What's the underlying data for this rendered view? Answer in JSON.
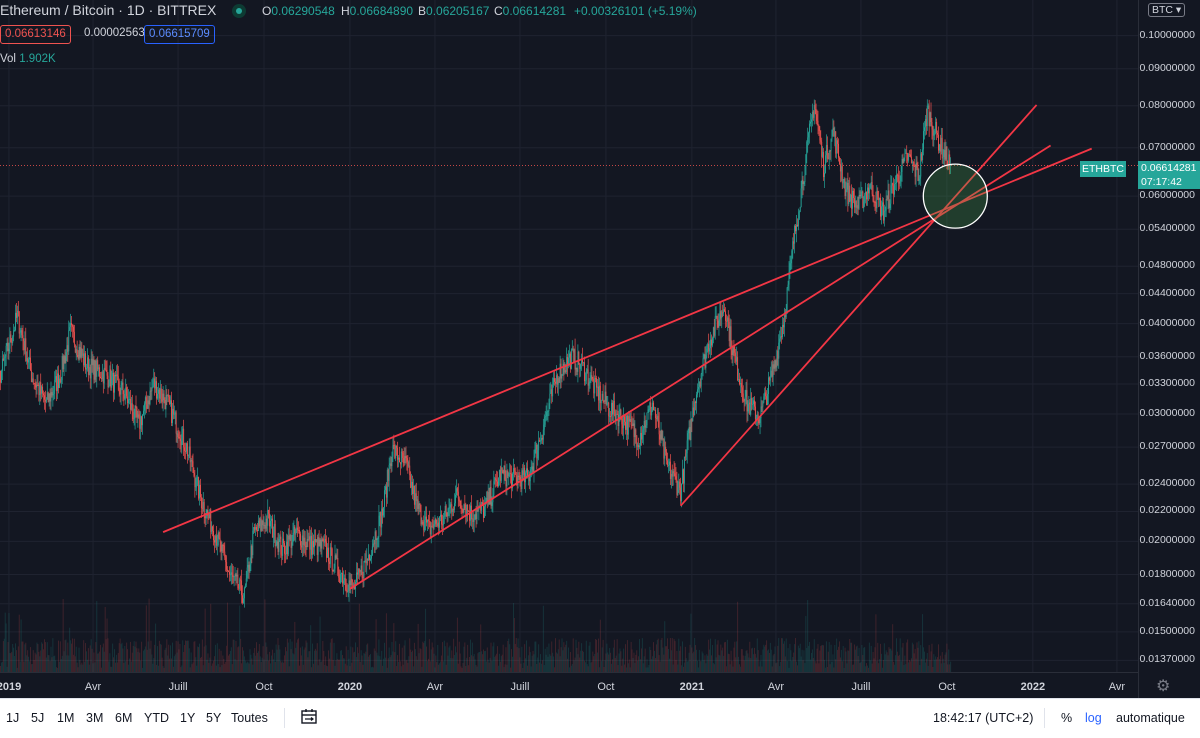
{
  "header": {
    "symbol": "Ethereum / Bitcoin · 1D · BITTREX",
    "open_label": "O",
    "open": "0.06290548",
    "high_label": "H",
    "high": "0.06684890",
    "low_label": "B",
    "low": "0.06205167",
    "close_label": "C",
    "close": "0.06614281",
    "change": "+0.00326101 (+5.19%)",
    "bid": "0.06613146",
    "spread": "0.00002563",
    "ask": "0.06615709",
    "volume_label": "Vol",
    "volume": "1.902K",
    "currency_select": "BTC"
  },
  "price_marker": {
    "symbol": "ETHBTC",
    "price": "0.06614281",
    "countdown": "07:17:42"
  },
  "colors": {
    "up": "#26a69a",
    "down": "#ef5350",
    "trendline": "#f23645",
    "background": "#131722"
  },
  "bottom_bar": {
    "ranges": [
      "1J",
      "5J",
      "1M",
      "3M",
      "6M",
      "YTD",
      "1Y",
      "5Y",
      "Toutes"
    ],
    "compare_icon": "calendar-range-icon",
    "time": "18:42:17 (UTC+2)",
    "percent": "%",
    "log": "log",
    "auto": "automatique"
  },
  "chart_data": {
    "type": "candlestick",
    "title": "Ethereum / Bitcoin · 1D · BITTREX",
    "y_scale": "log",
    "ylim": [
      0.0132,
      0.112
    ],
    "y_ticks": [
      "0.10000000",
      "0.09000000",
      "0.08000000",
      "0.07000000",
      "0.06000000",
      "0.05400000",
      "0.04800000",
      "0.04400000",
      "0.04000000",
      "0.03600000",
      "0.03300000",
      "0.03000000",
      "0.02700000",
      "0.02400000",
      "0.02200000",
      "0.02000000",
      "0.01800000",
      "0.01640000",
      "0.01500000",
      "0.01370000"
    ],
    "x_range": [
      "2018-12-01",
      "2022-04-15"
    ],
    "x_ticks": [
      {
        "date": "2019-01-01",
        "label": "2019",
        "year": true
      },
      {
        "date": "2019-04-01",
        "label": "Avr",
        "year": false
      },
      {
        "date": "2019-07-01",
        "label": "Juill",
        "year": false
      },
      {
        "date": "2019-10-01",
        "label": "Oct",
        "year": false
      },
      {
        "date": "2020-01-01",
        "label": "2020",
        "year": true
      },
      {
        "date": "2020-04-01",
        "label": "Avr",
        "year": false
      },
      {
        "date": "2020-07-01",
        "label": "Juill",
        "year": false
      },
      {
        "date": "2020-10-01",
        "label": "Oct",
        "year": false
      },
      {
        "date": "2021-01-01",
        "label": "2021",
        "year": true
      },
      {
        "date": "2021-04-01",
        "label": "Avr",
        "year": false
      },
      {
        "date": "2021-07-01",
        "label": "Juill",
        "year": false
      },
      {
        "date": "2021-10-01",
        "label": "Oct",
        "year": false
      },
      {
        "date": "2022-01-01",
        "label": "2022",
        "year": true
      },
      {
        "date": "2022-04-01",
        "label": "Avr",
        "year": false
      }
    ],
    "price_path": [
      [
        "2018-12-01",
        0.0255
      ],
      [
        "2018-12-20",
        0.033
      ],
      [
        "2019-01-10",
        0.041
      ],
      [
        "2019-01-25",
        0.034
      ],
      [
        "2019-02-10",
        0.031
      ],
      [
        "2019-02-25",
        0.034
      ],
      [
        "2019-03-08",
        0.039
      ],
      [
        "2019-03-25",
        0.035
      ],
      [
        "2019-04-15",
        0.034
      ],
      [
        "2019-05-05",
        0.032
      ],
      [
        "2019-05-20",
        0.029
      ],
      [
        "2019-06-05",
        0.033
      ],
      [
        "2019-06-20",
        0.031
      ],
      [
        "2019-07-10",
        0.027
      ],
      [
        "2019-07-25",
        0.023
      ],
      [
        "2019-08-10",
        0.0205
      ],
      [
        "2019-08-25",
        0.018
      ],
      [
        "2019-09-10",
        0.0168
      ],
      [
        "2019-09-20",
        0.0205
      ],
      [
        "2019-10-05",
        0.0215
      ],
      [
        "2019-10-20",
        0.0195
      ],
      [
        "2019-11-05",
        0.0205
      ],
      [
        "2019-11-20",
        0.0198
      ],
      [
        "2019-12-05",
        0.0196
      ],
      [
        "2019-12-20",
        0.0182
      ],
      [
        "2020-01-05",
        0.0172
      ],
      [
        "2020-01-20",
        0.019
      ],
      [
        "2020-02-05",
        0.022
      ],
      [
        "2020-02-15",
        0.0268
      ],
      [
        "2020-03-01",
        0.0255
      ],
      [
        "2020-03-12",
        0.0225
      ],
      [
        "2020-03-25",
        0.0208
      ],
      [
        "2020-04-10",
        0.0215
      ],
      [
        "2020-04-25",
        0.0232
      ],
      [
        "2020-05-10",
        0.0218
      ],
      [
        "2020-05-25",
        0.0222
      ],
      [
        "2020-06-10",
        0.0248
      ],
      [
        "2020-06-25",
        0.0244
      ],
      [
        "2020-07-10",
        0.0245
      ],
      [
        "2020-07-25",
        0.0285
      ],
      [
        "2020-08-10",
        0.034
      ],
      [
        "2020-08-25",
        0.036
      ],
      [
        "2020-09-05",
        0.035
      ],
      [
        "2020-09-20",
        0.0325
      ],
      [
        "2020-10-05",
        0.0305
      ],
      [
        "2020-10-20",
        0.0295
      ],
      [
        "2020-11-05",
        0.0278
      ],
      [
        "2020-11-20",
        0.031
      ],
      [
        "2020-12-05",
        0.0255
      ],
      [
        "2020-12-20",
        0.0235
      ],
      [
        "2021-01-05",
        0.032
      ],
      [
        "2021-01-20",
        0.038
      ],
      [
        "2021-02-05",
        0.0425
      ],
      [
        "2021-02-15",
        0.036
      ],
      [
        "2021-03-01",
        0.031
      ],
      [
        "2021-03-15",
        0.0298
      ],
      [
        "2021-03-28",
        0.034
      ],
      [
        "2021-04-10",
        0.041
      ],
      [
        "2021-04-20",
        0.052
      ],
      [
        "2021-05-01",
        0.065
      ],
      [
        "2021-05-12",
        0.081
      ],
      [
        "2021-05-22",
        0.066
      ],
      [
        "2021-06-01",
        0.074
      ],
      [
        "2021-06-15",
        0.061
      ],
      [
        "2021-06-28",
        0.058
      ],
      [
        "2021-07-10",
        0.062
      ],
      [
        "2021-07-25",
        0.057
      ],
      [
        "2021-08-05",
        0.062
      ],
      [
        "2021-08-20",
        0.068
      ],
      [
        "2021-09-01",
        0.064
      ],
      [
        "2021-09-10",
        0.079
      ],
      [
        "2021-09-25",
        0.07
      ],
      [
        "2021-10-05",
        0.0662
      ]
    ],
    "trendlines": [
      {
        "from": [
          "2019-06-15",
          0.0206
        ],
        "to": [
          "2022-03-05",
          0.0698
        ]
      },
      {
        "from": [
          "2020-01-01",
          0.0172
        ],
        "to": [
          "2022-01-20",
          0.0705
        ]
      },
      {
        "from": [
          "2020-12-20",
          0.0224
        ],
        "to": [
          "2022-01-05",
          0.0802
        ]
      }
    ],
    "highlight_circle": {
      "center": [
        "2021-10-10",
        0.06
      ]
    },
    "last_price": 0.06614281
  }
}
